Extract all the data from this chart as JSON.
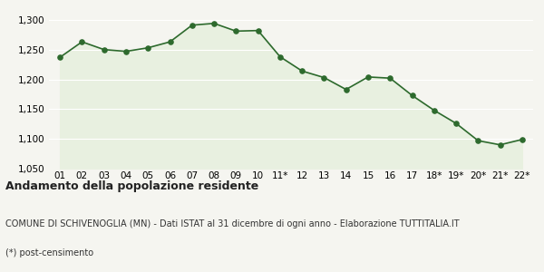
{
  "x_labels": [
    "01",
    "02",
    "03",
    "04",
    "05",
    "06",
    "07",
    "08",
    "09",
    "10",
    "11*",
    "12",
    "13",
    "14",
    "15",
    "16",
    "17",
    "18*",
    "19*",
    "20*",
    "21*",
    "22*"
  ],
  "y_values": [
    1237,
    1263,
    1250,
    1247,
    1253,
    1263,
    1291,
    1294,
    1281,
    1282,
    1238,
    1214,
    1203,
    1183,
    1204,
    1202,
    1173,
    1148,
    1126,
    1097,
    1090,
    1099
  ],
  "y_ticks": [
    1050,
    1100,
    1150,
    1200,
    1250,
    1300
  ],
  "ylim": [
    1050,
    1315
  ],
  "line_color": "#2d6a2d",
  "fill_color": "#e8f0e0",
  "marker_color": "#2d6a2d",
  "bg_color": "#f5f5f0",
  "grid_color": "#ffffff",
  "title": "Andamento della popolazione residente",
  "subtitle": "COMUNE DI SCHIVENOGLIA (MN) - Dati ISTAT al 31 dicembre di ogni anno - Elaborazione TUTTITALIA.IT",
  "footnote": "(*) post-censimento",
  "title_fontsize": 9,
  "subtitle_fontsize": 7,
  "footnote_fontsize": 7,
  "tick_fontsize": 7.5
}
